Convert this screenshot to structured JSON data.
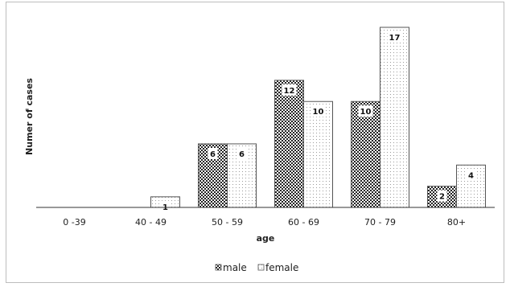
{
  "chart_data": {
    "type": "bar",
    "title": "",
    "xlabel": "age",
    "ylabel": "Numer of cases",
    "categories": [
      "0 -39",
      "40 - 49",
      "50 - 59",
      "60 - 69",
      "70 - 79",
      "80+"
    ],
    "series": [
      {
        "name": "male",
        "values": [
          0,
          0,
          6,
          12,
          10,
          2
        ],
        "pattern": "checker"
      },
      {
        "name": "female",
        "values": [
          0,
          1,
          6,
          10,
          17,
          4
        ],
        "pattern": "dots"
      }
    ],
    "ylim": [
      0,
      17
    ],
    "grid": false,
    "legend": "bottom",
    "colors": {
      "axis": "#333333",
      "bar_border": "#555555"
    }
  }
}
